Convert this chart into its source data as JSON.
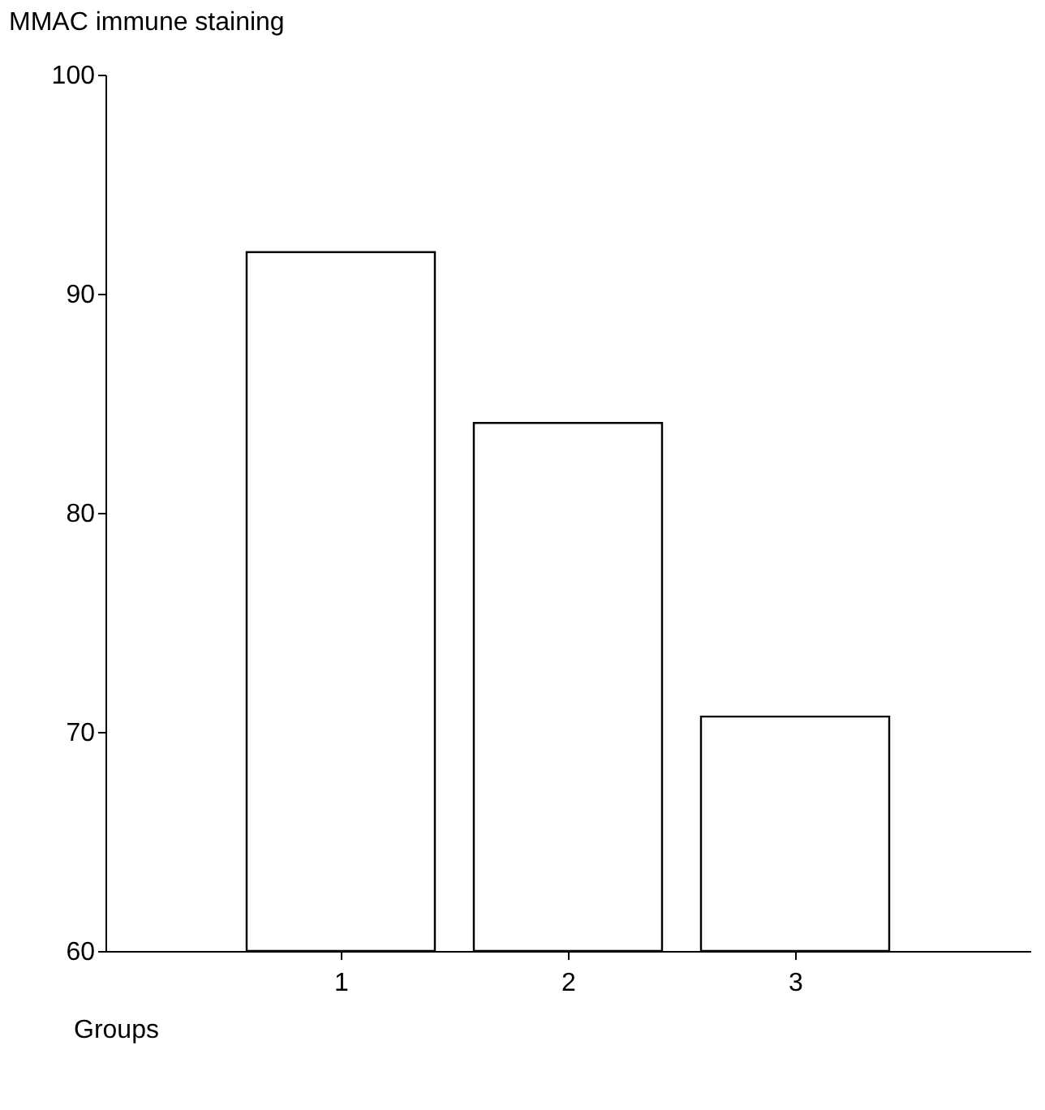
{
  "chart_data": {
    "type": "bar",
    "ylabel": "MMAC immune staining",
    "xlabel": "Groups",
    "categories": [
      "1",
      "2",
      "3"
    ],
    "values": [
      91.9,
      84.1,
      70.7
    ],
    "color": "#ffffff",
    "ylim": [
      60,
      100
    ],
    "yticks": [
      60,
      70,
      80,
      90,
      100
    ],
    "grid": false
  }
}
